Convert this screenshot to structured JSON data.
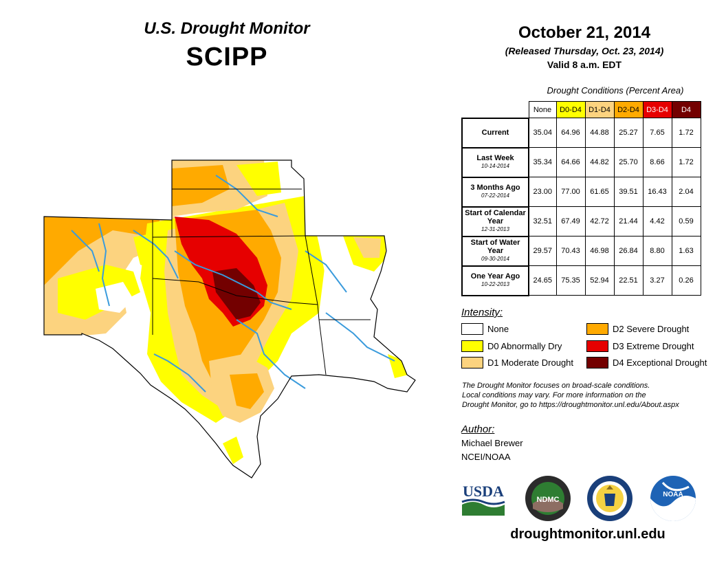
{
  "header": {
    "product": "U.S. Drought Monitor",
    "region": "SCIPP"
  },
  "date": {
    "main": "October 21, 2014",
    "released": "(Released Thursday, Oct. 23, 2014)",
    "valid": "Valid 8 a.m. EDT"
  },
  "conditions": {
    "caption": "Drought Conditions (Percent Area)",
    "columns": [
      "None",
      "D0-D4",
      "D1-D4",
      "D2-D4",
      "D3-D4",
      "D4"
    ],
    "rows": [
      {
        "label": "Current",
        "sub": "",
        "values": [
          "35.04",
          "64.96",
          "44.88",
          "25.27",
          "7.65",
          "1.72"
        ]
      },
      {
        "label": "Last Week",
        "sub": "10-14-2014",
        "values": [
          "35.34",
          "64.66",
          "44.82",
          "25.70",
          "8.66",
          "1.72"
        ]
      },
      {
        "label": "3 Months Ago",
        "sub": "07-22-2014",
        "values": [
          "23.00",
          "77.00",
          "61.65",
          "39.51",
          "16.43",
          "2.04"
        ]
      },
      {
        "label": "Start of Calendar Year",
        "sub": "12-31-2013",
        "values": [
          "32.51",
          "67.49",
          "42.72",
          "21.44",
          "4.42",
          "0.59"
        ]
      },
      {
        "label": "Start of Water Year",
        "sub": "09-30-2014",
        "values": [
          "29.57",
          "70.43",
          "46.98",
          "26.84",
          "8.80",
          "1.63"
        ]
      },
      {
        "label": "One Year Ago",
        "sub": "10-22-2013",
        "values": [
          "24.65",
          "75.35",
          "52.94",
          "22.51",
          "3.27",
          "0.26"
        ]
      }
    ]
  },
  "legend": {
    "heading": "Intensity:",
    "items": [
      {
        "label": "None",
        "color": "#ffffff"
      },
      {
        "label": "D0 Abnormally Dry",
        "color": "#ffff00"
      },
      {
        "label": "D1 Moderate Drought",
        "color": "#fcd37f"
      },
      {
        "label": "D2 Severe Drought",
        "color": "#ffaa00"
      },
      {
        "label": "D3 Extreme Drought",
        "color": "#e60000"
      },
      {
        "label": "D4 Exceptional Drought",
        "color": "#730000"
      }
    ]
  },
  "note": {
    "line1": "The Drought Monitor focuses on broad-scale conditions.",
    "line2": "Local conditions may vary. For more information on the",
    "line3": "Drought Monitor, go to https://droughtmonitor.unl.edu/About.aspx"
  },
  "author": {
    "heading": "Author:",
    "name": "Michael Brewer",
    "org": "NCEI/NOAA"
  },
  "logos": {
    "usda": "USDA",
    "ndmc": "NDMC",
    "noaa": "NOAA"
  },
  "site": "droughtmonitor.unl.edu",
  "icons": [
    "usda-logo",
    "ndmc-logo",
    "commerce-seal-logo",
    "noaa-logo"
  ]
}
